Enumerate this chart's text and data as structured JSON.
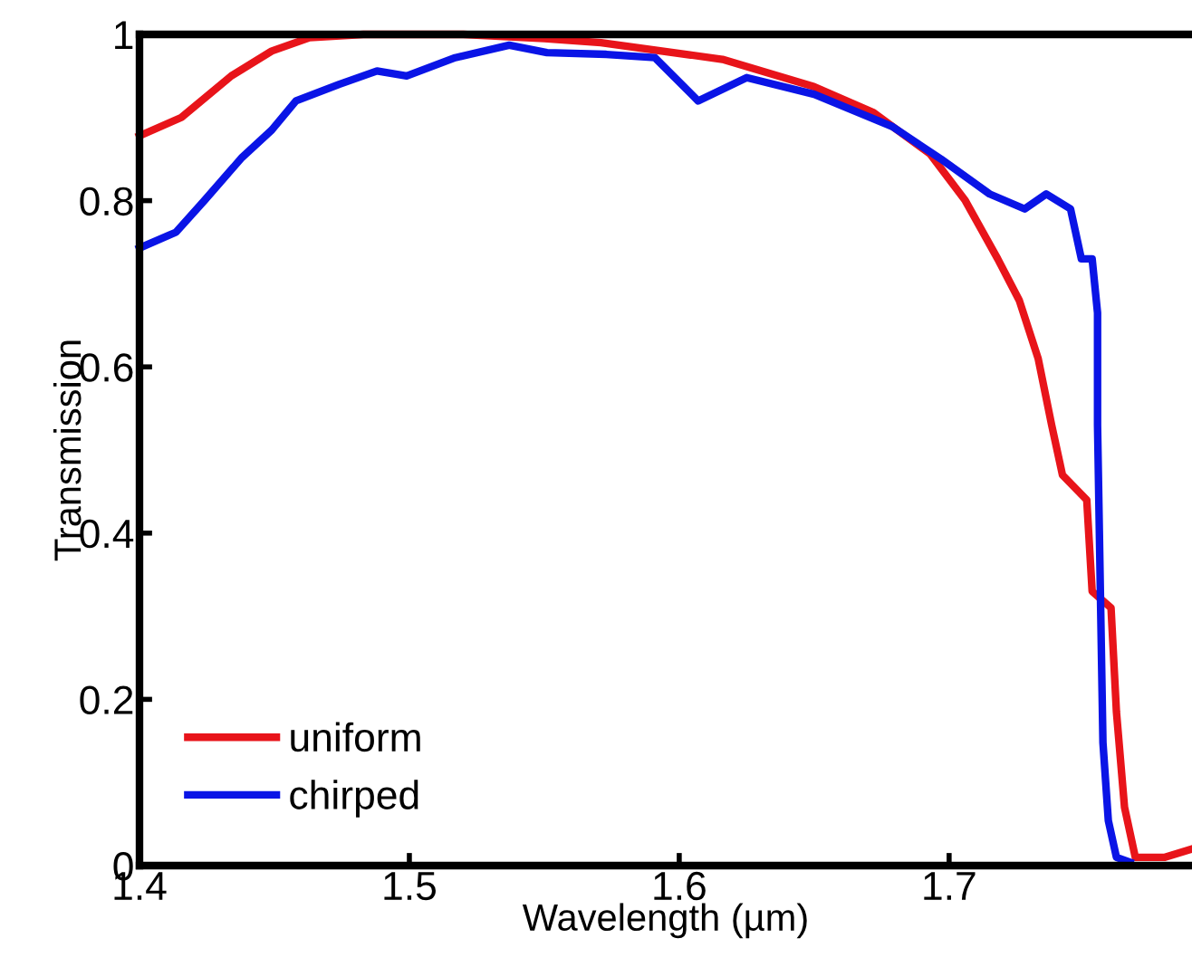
{
  "chart_data": {
    "type": "line",
    "xlabel": "Wavelength (µm)",
    "ylabel": "Transmission",
    "xlim": [
      1.4,
      1.79
    ],
    "ylim": [
      0,
      1
    ],
    "xticks": [
      1.4,
      1.5,
      1.6,
      1.7
    ],
    "yticks": [
      0,
      0.2,
      0.4,
      0.6,
      0.8,
      1
    ],
    "grid": false,
    "legend": "bottom left",
    "marker": "none",
    "line_style": "solid",
    "series": [
      {
        "name": "uniform",
        "color": "#e8141a",
        "x": [
          1.4,
          1.4155,
          1.434,
          1.449,
          1.463,
          1.483,
          1.52,
          1.55,
          1.571,
          1.616,
          1.65,
          1.672,
          1.693,
          1.706,
          1.718,
          1.726,
          1.733,
          1.738,
          1.742,
          1.751,
          1.753,
          1.76,
          1.762,
          1.765,
          1.769,
          1.78,
          1.79
        ],
        "values": [
          0.878,
          0.9,
          0.95,
          0.98,
          0.996,
          1.0,
          1.0,
          0.995,
          0.99,
          0.97,
          0.937,
          0.906,
          0.856,
          0.8,
          0.73,
          0.68,
          0.61,
          0.53,
          0.47,
          0.44,
          0.33,
          0.31,
          0.185,
          0.07,
          0.01,
          0.01,
          0.02
        ]
      },
      {
        "name": "chirped",
        "color": "#0a14e6",
        "x": [
          1.4,
          1.4135,
          1.424,
          1.438,
          1.449,
          1.458,
          1.474,
          1.488,
          1.499,
          1.517,
          1.537,
          1.551,
          1.573,
          1.591,
          1.607,
          1.625,
          1.65,
          1.679,
          1.697,
          1.715,
          1.728,
          1.736,
          1.745,
          1.749,
          1.753,
          1.755,
          1.755,
          1.757,
          1.759,
          1.762,
          1.767
        ],
        "values": [
          0.743,
          0.762,
          0.8,
          0.852,
          0.885,
          0.92,
          0.94,
          0.956,
          0.95,
          0.972,
          0.987,
          0.978,
          0.976,
          0.972,
          0.92,
          0.948,
          0.928,
          0.889,
          0.85,
          0.808,
          0.79,
          0.808,
          0.79,
          0.73,
          0.73,
          0.665,
          0.53,
          0.148,
          0.054,
          0.01,
          0.004
        ]
      }
    ]
  }
}
